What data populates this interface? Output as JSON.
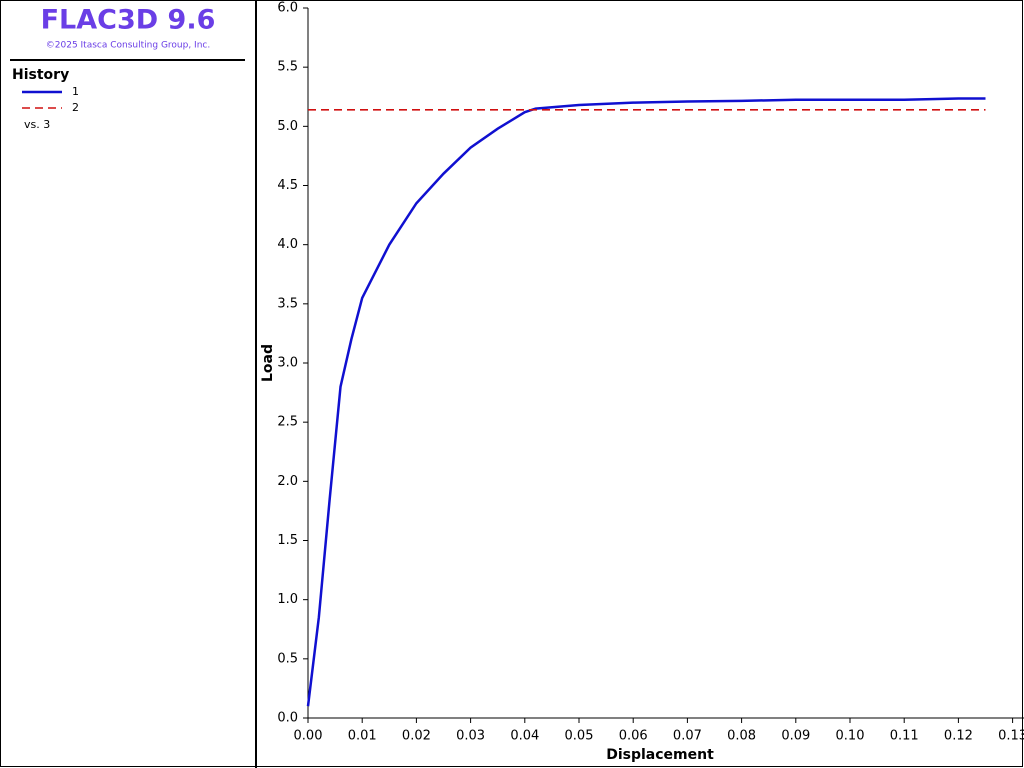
{
  "sidebar": {
    "product": "FLAC3D 9.6",
    "copyright": "©2025 Itasca Consulting Group, Inc.",
    "legend_title": "History",
    "x_note": "vs. 3"
  },
  "chart_data": {
    "type": "line",
    "x_label": "Displacement",
    "y_label": "Load",
    "series": [
      {
        "name": "1",
        "color": "#1010d0",
        "dash": false,
        "x": [
          0,
          0.002,
          0.004,
          0.006,
          0.008,
          0.01,
          0.015,
          0.02,
          0.025,
          0.03,
          0.035,
          0.04,
          0.042,
          0.05,
          0.06,
          0.07,
          0.08,
          0.09,
          0.1,
          0.11,
          0.12,
          0.125
        ],
        "values": [
          0.1,
          0.85,
          1.85,
          2.8,
          3.2,
          3.55,
          4.0,
          4.35,
          4.6,
          4.82,
          4.98,
          5.12,
          5.15,
          5.18,
          5.2,
          5.21,
          5.215,
          5.225,
          5.225,
          5.225,
          5.235,
          5.235
        ]
      },
      {
        "name": "2",
        "color": "#d01010",
        "dash": true,
        "x": [
          0,
          0.125
        ],
        "values": [
          5.14,
          5.14
        ]
      }
    ],
    "xlim": [
      0,
      0.13
    ],
    "ylim": [
      0,
      6
    ],
    "xticks": [
      {
        "value": 0,
        "label": "0.00"
      },
      {
        "value": 0.01,
        "label": "0.01"
      },
      {
        "value": 0.02,
        "label": "0.02"
      },
      {
        "value": 0.03,
        "label": "0.03"
      },
      {
        "value": 0.04,
        "label": "0.04"
      },
      {
        "value": 0.05,
        "label": "0.05"
      },
      {
        "value": 0.06,
        "label": "0.06"
      },
      {
        "value": 0.07,
        "label": "0.07"
      },
      {
        "value": 0.08,
        "label": "0.08"
      },
      {
        "value": 0.09,
        "label": "0.09"
      },
      {
        "value": 0.1,
        "label": "0.10"
      },
      {
        "value": 0.11,
        "label": "0.11"
      },
      {
        "value": 0.12,
        "label": "0.12"
      },
      {
        "value": 0.13,
        "label": "0.13"
      }
    ],
    "yticks": [
      {
        "value": 0,
        "label": "0.0"
      },
      {
        "value": 0.5,
        "label": "0.5"
      },
      {
        "value": 1,
        "label": "1.0"
      },
      {
        "value": 1.5,
        "label": "1.5"
      },
      {
        "value": 2,
        "label": "2.0"
      },
      {
        "value": 2.5,
        "label": "2.5"
      },
      {
        "value": 3,
        "label": "3.0"
      },
      {
        "value": 3.5,
        "label": "3.5"
      },
      {
        "value": 4,
        "label": "4.0"
      },
      {
        "value": 4.5,
        "label": "4.5"
      },
      {
        "value": 5,
        "label": "5.0"
      },
      {
        "value": 5.5,
        "label": "5.5"
      },
      {
        "value": 6,
        "label": "6.0"
      }
    ]
  }
}
